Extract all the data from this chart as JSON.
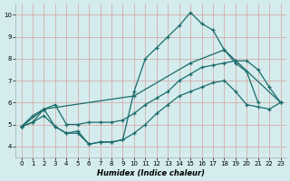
{
  "xlabel": "Humidex (Indice chaleur)",
  "background_color": "#d4eced",
  "grid_color": "#c0d8da",
  "line_color": "#1a6b6b",
  "xlim": [
    -0.5,
    23.5
  ],
  "ylim": [
    3.5,
    10.5
  ],
  "xticks": [
    0,
    1,
    2,
    3,
    4,
    5,
    6,
    7,
    8,
    9,
    10,
    11,
    12,
    13,
    14,
    15,
    16,
    17,
    18,
    19,
    20,
    21,
    22,
    23
  ],
  "yticks": [
    4,
    5,
    6,
    7,
    8,
    9,
    10
  ],
  "line1_x": [
    0,
    1,
    2,
    3,
    4,
    5,
    6,
    7,
    8,
    9,
    10,
    11,
    12,
    13,
    14,
    15,
    16,
    17,
    18,
    19,
    20,
    21
  ],
  "line1_y": [
    4.9,
    5.4,
    5.7,
    4.9,
    4.6,
    4.7,
    4.1,
    4.2,
    4.2,
    4.3,
    6.5,
    8.0,
    8.5,
    9.0,
    9.5,
    10.1,
    9.6,
    9.3,
    8.4,
    7.8,
    7.4,
    6.0
  ],
  "line2_x": [
    0,
    1,
    2,
    3,
    4,
    5,
    6,
    7,
    8,
    9,
    10,
    11,
    12,
    13,
    14,
    15,
    16,
    17,
    18,
    19,
    20,
    21,
    22,
    23
  ],
  "line2_y": [
    4.9,
    5.1,
    5.7,
    5.9,
    5.0,
    5.0,
    5.1,
    5.1,
    5.1,
    5.2,
    5.5,
    5.9,
    6.2,
    6.5,
    7.0,
    7.3,
    7.6,
    7.7,
    7.8,
    7.9,
    7.9,
    7.5,
    6.7,
    6.0
  ],
  "line3_x": [
    0,
    2,
    10,
    15,
    18,
    23
  ],
  "line3_y": [
    4.9,
    5.7,
    6.3,
    7.8,
    8.4,
    6.0
  ],
  "line4_x": [
    0,
    1,
    2,
    3,
    4,
    5,
    6,
    7,
    8,
    9,
    10,
    11,
    12,
    13,
    14,
    15,
    16,
    17,
    18,
    19,
    20,
    21,
    22,
    23
  ],
  "line4_y": [
    4.9,
    5.1,
    5.4,
    4.9,
    4.6,
    4.6,
    4.1,
    4.2,
    4.2,
    4.3,
    4.6,
    5.0,
    5.5,
    5.9,
    6.3,
    6.5,
    6.7,
    6.9,
    7.0,
    6.5,
    5.9,
    5.8,
    5.7,
    6.0
  ]
}
